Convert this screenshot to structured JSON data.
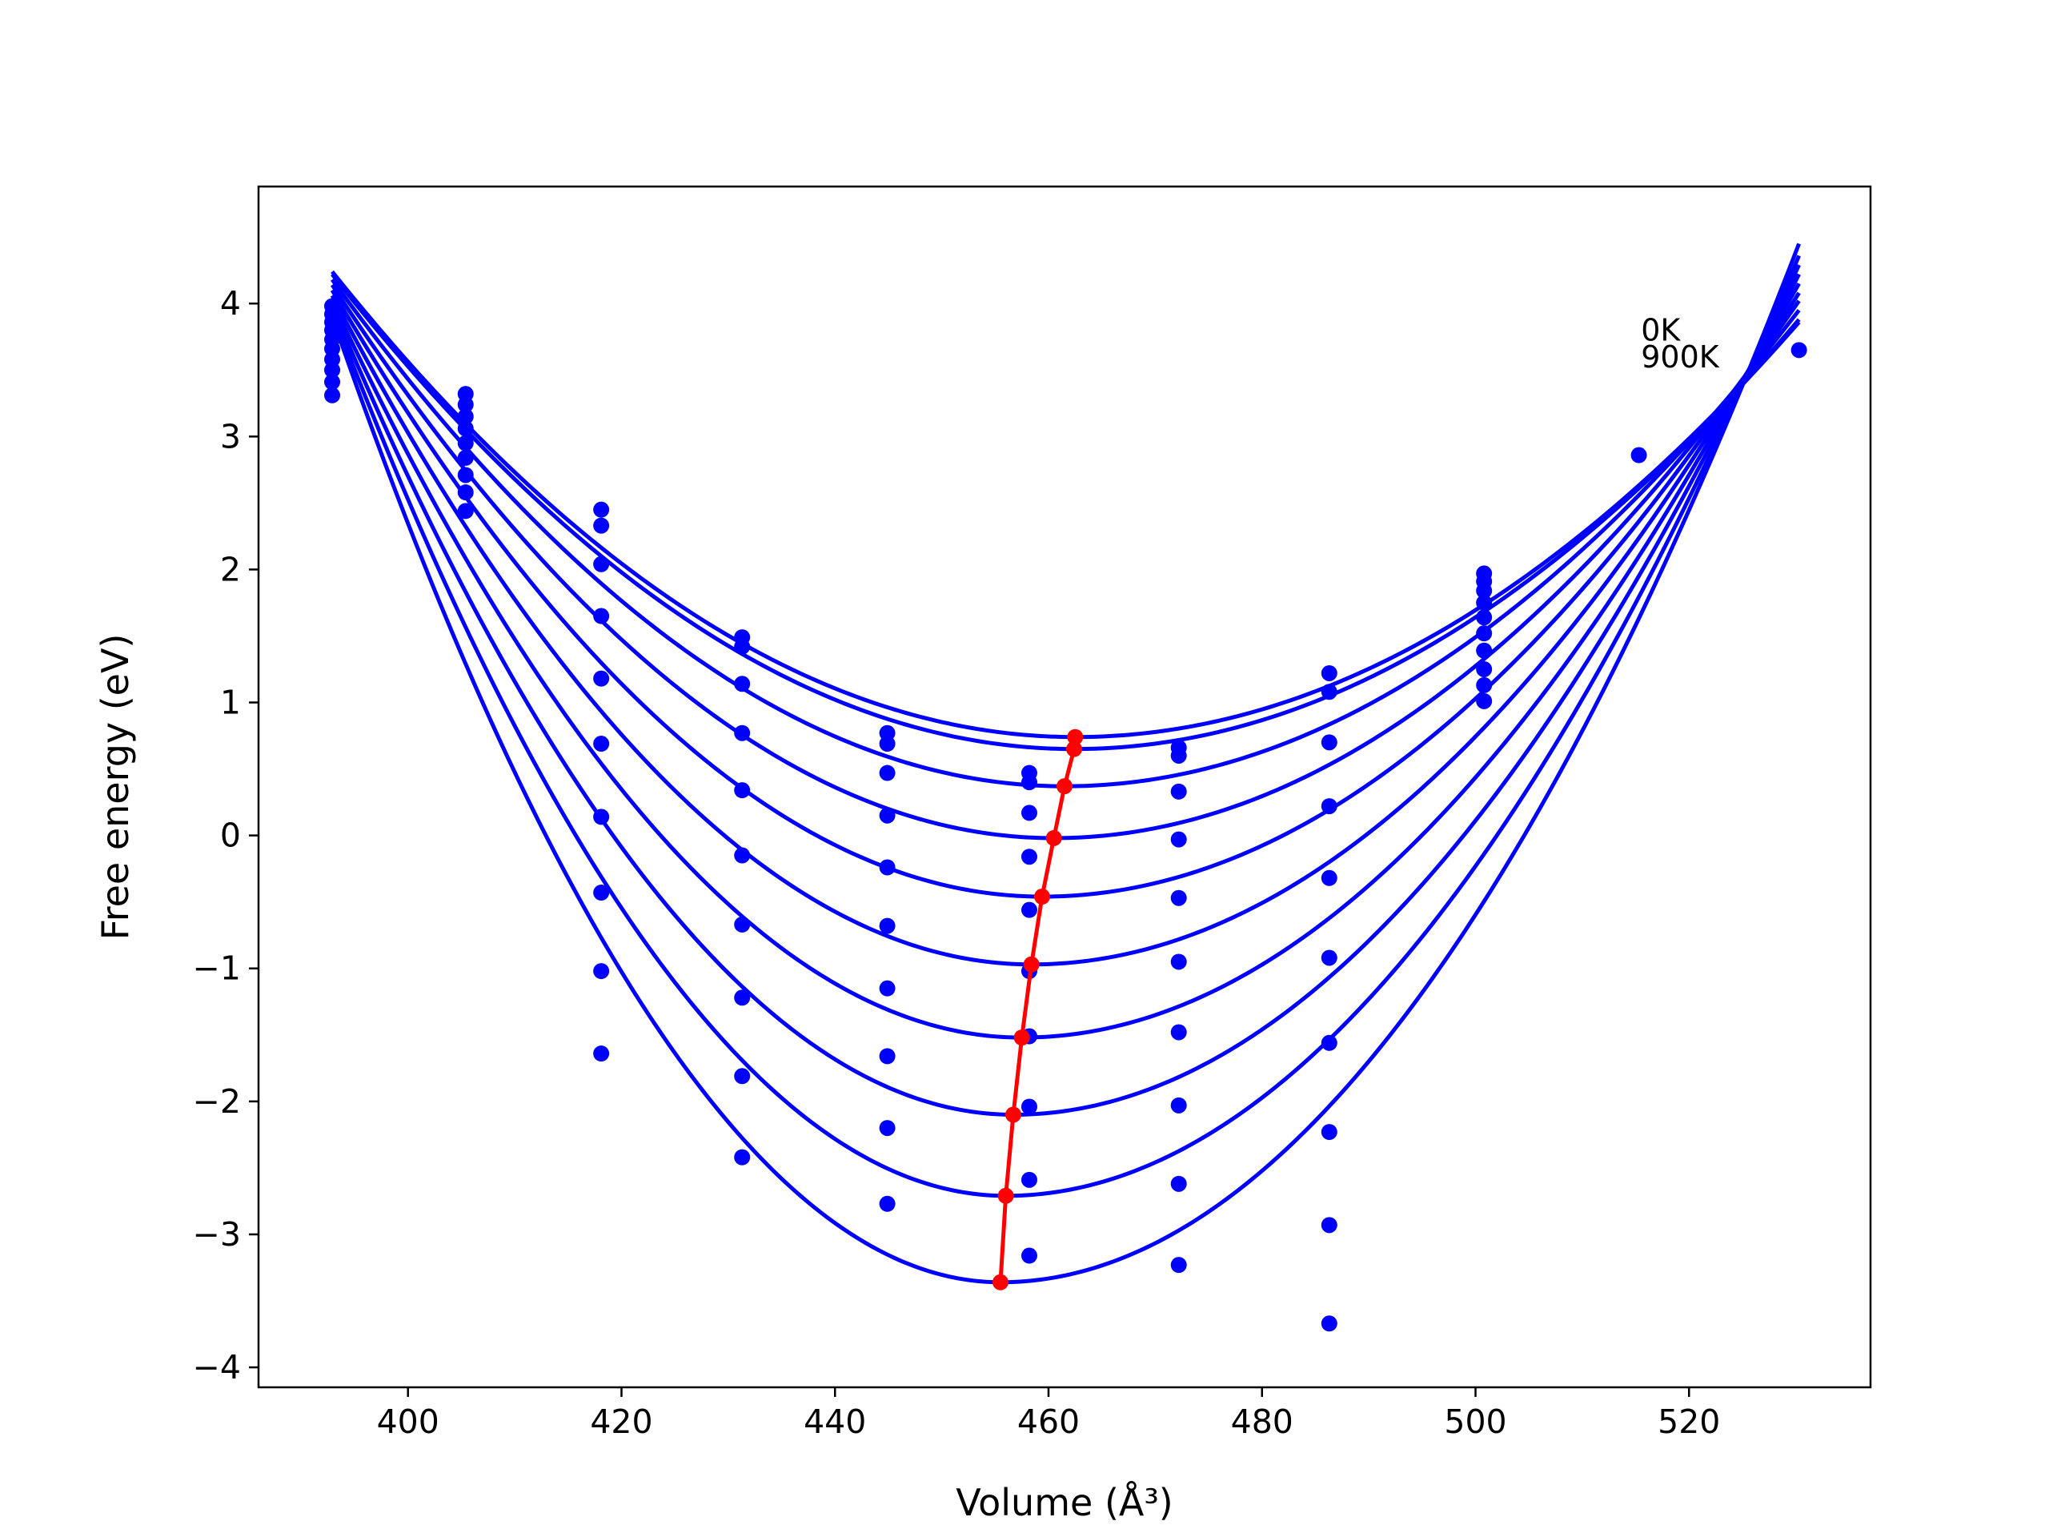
{
  "chart_data": {
    "type": "line",
    "xlabel": "Volume (Å³)",
    "ylabel": "Free energy (eV)",
    "xlim": [
      386,
      537
    ],
    "ylim": [
      -4.15,
      4.88
    ],
    "xticks": [
      400,
      420,
      440,
      460,
      480,
      500,
      520
    ],
    "yticks": [
      -4,
      -3,
      -2,
      -1,
      0,
      1,
      2,
      3,
      4
    ],
    "ytick_labels": [
      "−4",
      "−3",
      "−2",
      "−1",
      "0",
      "1",
      "2",
      "3",
      "4"
    ],
    "grid": false,
    "legend": "none",
    "annotations": [
      {
        "text": "0K",
        "x": 515.5,
        "y": 3.72
      },
      {
        "text": "900K",
        "x": 515.5,
        "y": 3.52
      }
    ],
    "volumes": [
      392.9,
      405.4,
      418.1,
      431.3,
      444.9,
      458.2,
      472.2,
      486.3,
      500.8,
      515.3,
      530.3
    ],
    "fit_curves": {
      "color": "#0000ff",
      "x_range": [
        392.9,
        530.3
      ],
      "series": [
        {
          "min_volume": 462.5,
          "min_energy": 0.74,
          "left_end": 4.24,
          "right_end": 3.86
        },
        {
          "min_volume": 462.4,
          "min_energy": 0.65,
          "left_end": 4.22,
          "right_end": 3.88
        },
        {
          "min_volume": 461.5,
          "min_energy": 0.37,
          "left_end": 4.18,
          "right_end": 3.95
        },
        {
          "min_volume": 460.5,
          "min_energy": -0.02,
          "left_end": 4.14,
          "right_end": 4.02
        },
        {
          "min_volume": 459.4,
          "min_energy": -0.46,
          "left_end": 4.1,
          "right_end": 4.08
        },
        {
          "min_volume": 458.4,
          "min_energy": -0.97,
          "left_end": 4.06,
          "right_end": 4.15
        },
        {
          "min_volume": 457.5,
          "min_energy": -1.52,
          "left_end": 4.02,
          "right_end": 4.22
        },
        {
          "min_volume": 456.7,
          "min_energy": -2.1,
          "left_end": 3.98,
          "right_end": 4.29
        },
        {
          "min_volume": 456.0,
          "min_energy": -2.71,
          "left_end": 3.94,
          "right_end": 4.36
        },
        {
          "min_volume": 455.5,
          "min_energy": -3.36,
          "left_end": 3.9,
          "right_end": 4.45
        }
      ]
    },
    "data_points": {
      "color": "#0000ff",
      "points": [
        [
          392.9,
          3.98
        ],
        [
          392.9,
          3.92
        ],
        [
          392.9,
          3.86
        ],
        [
          392.9,
          3.8
        ],
        [
          392.9,
          3.73
        ],
        [
          392.9,
          3.66
        ],
        [
          392.9,
          3.58
        ],
        [
          392.9,
          3.5
        ],
        [
          392.9,
          3.41
        ],
        [
          392.9,
          3.31
        ],
        [
          405.4,
          3.32
        ],
        [
          405.4,
          3.24
        ],
        [
          405.4,
          3.15
        ],
        [
          405.4,
          3.06
        ],
        [
          405.4,
          2.95
        ],
        [
          405.4,
          2.84
        ],
        [
          405.4,
          2.71
        ],
        [
          405.4,
          2.58
        ],
        [
          405.4,
          2.44
        ],
        [
          418.1,
          2.45
        ],
        [
          418.1,
          2.33
        ],
        [
          418.1,
          2.04
        ],
        [
          418.1,
          1.65
        ],
        [
          418.1,
          1.18
        ],
        [
          418.1,
          0.69
        ],
        [
          418.1,
          0.14
        ],
        [
          418.1,
          -0.43
        ],
        [
          418.1,
          -1.02
        ],
        [
          418.1,
          -1.64
        ],
        [
          431.3,
          1.49
        ],
        [
          431.3,
          1.42
        ],
        [
          431.3,
          1.14
        ],
        [
          431.3,
          0.77
        ],
        [
          431.3,
          0.34
        ],
        [
          431.3,
          -0.15
        ],
        [
          431.3,
          -0.67
        ],
        [
          431.3,
          -1.22
        ],
        [
          431.3,
          -1.81
        ],
        [
          431.3,
          -2.42
        ],
        [
          444.9,
          0.77
        ],
        [
          444.9,
          0.69
        ],
        [
          444.9,
          0.47
        ],
        [
          444.9,
          0.15
        ],
        [
          444.9,
          -0.24
        ],
        [
          444.9,
          -0.68
        ],
        [
          444.9,
          -1.15
        ],
        [
          444.9,
          -1.66
        ],
        [
          444.9,
          -2.2
        ],
        [
          444.9,
          -2.77
        ],
        [
          458.2,
          0.47
        ],
        [
          458.2,
          0.4
        ],
        [
          458.2,
          0.17
        ],
        [
          458.2,
          -0.16
        ],
        [
          458.2,
          -0.56
        ],
        [
          458.2,
          -1.02
        ],
        [
          458.2,
          -1.51
        ],
        [
          458.2,
          -2.04
        ],
        [
          458.2,
          -2.59
        ],
        [
          458.2,
          -3.16
        ],
        [
          472.2,
          0.66
        ],
        [
          472.2,
          0.6
        ],
        [
          472.2,
          0.33
        ],
        [
          472.2,
          -0.03
        ],
        [
          472.2,
          -0.47
        ],
        [
          472.2,
          -0.95
        ],
        [
          472.2,
          -1.48
        ],
        [
          472.2,
          -2.03
        ],
        [
          472.2,
          -2.62
        ],
        [
          472.2,
          -3.23
        ],
        [
          486.3,
          1.22
        ],
        [
          486.3,
          1.08
        ],
        [
          486.3,
          0.7
        ],
        [
          486.3,
          0.22
        ],
        [
          486.3,
          -0.32
        ],
        [
          486.3,
          -0.92
        ],
        [
          486.3,
          -1.56
        ],
        [
          486.3,
          -2.23
        ],
        [
          486.3,
          -2.93
        ],
        [
          486.3,
          -3.67
        ],
        [
          500.8,
          1.97
        ],
        [
          500.8,
          1.91
        ],
        [
          500.8,
          1.84
        ],
        [
          500.8,
          1.75
        ],
        [
          500.8,
          1.64
        ],
        [
          500.8,
          1.52
        ],
        [
          500.8,
          1.39
        ],
        [
          500.8,
          1.25
        ],
        [
          500.8,
          1.13
        ],
        [
          500.8,
          1.01
        ],
        [
          515.3,
          2.86
        ],
        [
          530.3,
          3.65
        ]
      ]
    },
    "equilibrium_line": {
      "color": "#ff0000",
      "points": [
        [
          462.5,
          0.74
        ],
        [
          462.4,
          0.65
        ],
        [
          461.5,
          0.37
        ],
        [
          460.5,
          -0.02
        ],
        [
          459.4,
          -0.46
        ],
        [
          458.4,
          -0.97
        ],
        [
          457.5,
          -1.52
        ],
        [
          456.7,
          -2.1
        ],
        [
          456.0,
          -2.71
        ],
        [
          455.5,
          -3.36
        ]
      ]
    }
  }
}
